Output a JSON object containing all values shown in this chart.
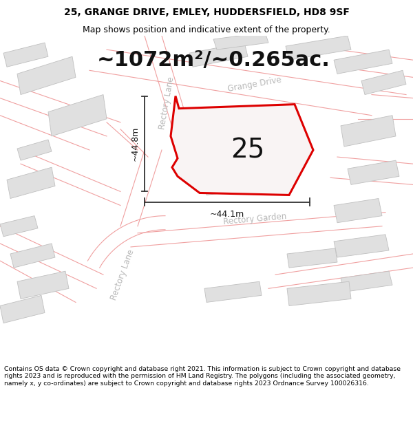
{
  "title_line1": "25, GRANGE DRIVE, EMLEY, HUDDERSFIELD, HD8 9SF",
  "title_line2": "Map shows position and indicative extent of the property.",
  "area_label": "~1072m²/~0.265ac.",
  "property_number": "25",
  "dim_height": "~44.8m",
  "dim_width": "~44.1m",
  "footer_text": "Contains OS data © Crown copyright and database right 2021. This information is subject to Crown copyright and database rights 2023 and is reproduced with the permission of HM Land Registry. The polygons (including the associated geometry, namely x, y co-ordinates) are subject to Crown copyright and database rights 2023 Ordnance Survey 100026316.",
  "map_bg": "#ffffff",
  "road_line_color": "#f0a0a0",
  "building_fill": "#e0e0e0",
  "building_edge": "#c0c0c0",
  "property_outline_color": "#dd0000",
  "property_fill": "#f9f4f4",
  "dim_line_color": "#333333",
  "road_label_color": "#b8b8b8",
  "title_fontsize": 10,
  "subtitle_fontsize": 9,
  "area_fontsize": 22,
  "number_fontsize": 28,
  "dim_fontsize": 9,
  "road_label_fontsize": 8.5
}
